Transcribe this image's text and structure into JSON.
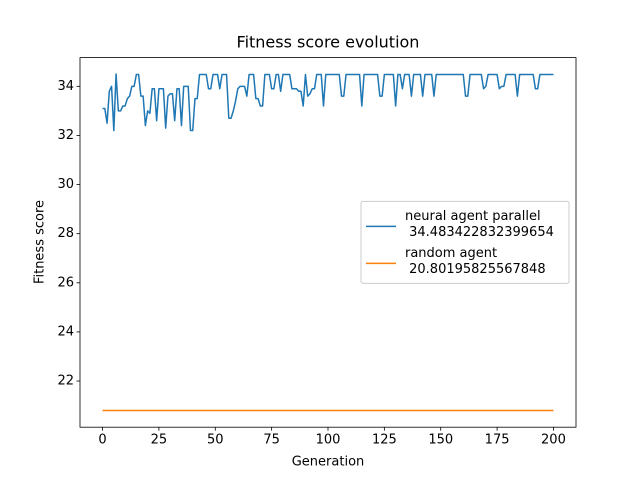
{
  "chart_data": {
    "type": "line",
    "title": "Fitness score evolution",
    "xlabel": "Generation",
    "ylabel": "Fitness score",
    "xlim": [
      -10,
      210
    ],
    "ylim": [
      20.12,
      35.17
    ],
    "xticks": [
      0,
      25,
      50,
      75,
      100,
      125,
      150,
      175,
      200
    ],
    "yticks": [
      22,
      24,
      26,
      28,
      30,
      32,
      34
    ],
    "legend": "center right",
    "x": [
      0,
      1,
      2,
      3,
      4,
      5,
      6,
      7,
      8,
      9,
      10,
      11,
      12,
      13,
      14,
      15,
      16,
      17,
      18,
      19,
      20,
      21,
      22,
      23,
      24,
      25,
      26,
      27,
      28,
      29,
      30,
      31,
      32,
      33,
      34,
      35,
      36,
      37,
      38,
      39,
      40,
      41,
      42,
      43,
      44,
      45,
      46,
      47,
      48,
      49,
      50,
      51,
      52,
      53,
      54,
      55,
      56,
      57,
      58,
      59,
      60,
      61,
      62,
      63,
      64,
      65,
      66,
      67,
      68,
      69,
      70,
      71,
      72,
      73,
      74,
      75,
      76,
      77,
      78,
      79,
      80,
      81,
      82,
      83,
      84,
      85,
      86,
      87,
      88,
      89,
      90,
      91,
      92,
      93,
      94,
      95,
      96,
      97,
      98,
      99,
      100,
      101,
      102,
      103,
      104,
      105,
      106,
      107,
      108,
      109,
      110,
      111,
      112,
      113,
      114,
      115,
      116,
      117,
      118,
      119,
      120,
      121,
      122,
      123,
      124,
      125,
      126,
      127,
      128,
      129,
      130,
      131,
      132,
      133,
      134,
      135,
      136,
      137,
      138,
      139,
      140,
      141,
      142,
      143,
      144,
      145,
      146,
      147,
      148,
      149,
      150,
      151,
      152,
      153,
      154,
      155,
      156,
      157,
      158,
      159,
      160,
      161,
      162,
      163,
      164,
      165,
      166,
      167,
      168,
      169,
      170,
      171,
      172,
      173,
      174,
      175,
      176,
      177,
      178,
      179,
      180,
      181,
      182,
      183,
      184,
      185,
      186,
      187,
      188,
      189,
      190,
      191,
      192,
      193,
      194,
      195,
      196,
      197,
      198,
      199,
      200
    ],
    "series": [
      {
        "name": "neural agent parallel\n 34.483422832399654",
        "color": "#1f77b4",
        "values": [
          33.1,
          33.1,
          32.5,
          33.8,
          34.0,
          32.2,
          34.5,
          33.0,
          33.0,
          33.2,
          33.2,
          33.5,
          33.6,
          34.0,
          34.0,
          34.48,
          34.48,
          33.6,
          33.6,
          32.4,
          33.0,
          32.9,
          33.9,
          33.9,
          32.6,
          33.9,
          33.9,
          33.9,
          32.3,
          33.6,
          33.7,
          33.7,
          32.6,
          33.9,
          33.9,
          32.4,
          34.0,
          34.0,
          34.0,
          32.2,
          32.2,
          33.5,
          33.5,
          34.48,
          34.48,
          34.48,
          34.48,
          33.9,
          33.9,
          34.48,
          34.48,
          34.48,
          33.9,
          34.48,
          34.48,
          34.48,
          32.7,
          32.7,
          33.0,
          33.4,
          33.9,
          34.0,
          34.0,
          34.0,
          33.6,
          34.48,
          34.48,
          34.48,
          33.5,
          33.5,
          33.2,
          33.2,
          34.48,
          34.48,
          34.48,
          33.9,
          33.9,
          34.48,
          34.48,
          33.8,
          34.48,
          34.48,
          34.48,
          34.48,
          33.9,
          33.9,
          33.9,
          33.8,
          33.8,
          33.2,
          34.48,
          33.6,
          33.7,
          33.9,
          33.9,
          34.48,
          34.48,
          34.48,
          33.2,
          34.48,
          34.48,
          34.48,
          34.48,
          34.48,
          34.48,
          34.48,
          33.6,
          33.6,
          34.48,
          34.48,
          34.48,
          34.48,
          34.48,
          34.48,
          34.48,
          33.2,
          34.48,
          34.48,
          34.48,
          34.48,
          34.48,
          34.48,
          34.48,
          33.6,
          33.6,
          34.48,
          34.48,
          34.48,
          34.48,
          34.48,
          33.2,
          34.48,
          34.48,
          33.9,
          34.48,
          34.48,
          34.48,
          33.6,
          34.48,
          34.48,
          34.48,
          34.48,
          33.6,
          34.48,
          34.48,
          34.48,
          34.48,
          33.6,
          34.48,
          34.48,
          34.48,
          34.48,
          34.48,
          34.48,
          34.48,
          34.48,
          34.48,
          34.48,
          34.48,
          34.48,
          34.48,
          33.6,
          33.6,
          34.48,
          34.48,
          34.48,
          34.48,
          34.48,
          34.48,
          33.9,
          34.0,
          34.48,
          34.48,
          34.48,
          34.48,
          34.48,
          33.9,
          34.0,
          34.0,
          34.48,
          34.48,
          34.48,
          34.48,
          34.48,
          33.6,
          34.48,
          34.48,
          34.48,
          34.48,
          34.48,
          34.48,
          34.48,
          33.9,
          33.9,
          34.48,
          34.48,
          34.48,
          34.48,
          34.48,
          34.48,
          34.48
        ]
      },
      {
        "name": "random agent\n 20.80195825567848",
        "color": "#ff7f0e",
        "values": [
          20.80195825567848,
          20.80195825567848,
          20.80195825567848,
          20.80195825567848,
          20.80195825567848,
          20.80195825567848,
          20.80195825567848,
          20.80195825567848,
          20.80195825567848,
          20.80195825567848,
          20.80195825567848,
          20.80195825567848,
          20.80195825567848,
          20.80195825567848,
          20.80195825567848,
          20.80195825567848,
          20.80195825567848,
          20.80195825567848,
          20.80195825567848,
          20.80195825567848,
          20.80195825567848,
          20.80195825567848,
          20.80195825567848,
          20.80195825567848,
          20.80195825567848,
          20.80195825567848,
          20.80195825567848,
          20.80195825567848,
          20.80195825567848,
          20.80195825567848,
          20.80195825567848,
          20.80195825567848,
          20.80195825567848,
          20.80195825567848,
          20.80195825567848,
          20.80195825567848,
          20.80195825567848,
          20.80195825567848,
          20.80195825567848,
          20.80195825567848,
          20.80195825567848,
          20.80195825567848,
          20.80195825567848,
          20.80195825567848,
          20.80195825567848,
          20.80195825567848,
          20.80195825567848,
          20.80195825567848,
          20.80195825567848,
          20.80195825567848,
          20.80195825567848,
          20.80195825567848,
          20.80195825567848,
          20.80195825567848,
          20.80195825567848,
          20.80195825567848,
          20.80195825567848,
          20.80195825567848,
          20.80195825567848,
          20.80195825567848,
          20.80195825567848,
          20.80195825567848,
          20.80195825567848,
          20.80195825567848,
          20.80195825567848,
          20.80195825567848,
          20.80195825567848,
          20.80195825567848,
          20.80195825567848,
          20.80195825567848,
          20.80195825567848,
          20.80195825567848,
          20.80195825567848,
          20.80195825567848,
          20.80195825567848,
          20.80195825567848,
          20.80195825567848,
          20.80195825567848,
          20.80195825567848,
          20.80195825567848,
          20.80195825567848,
          20.80195825567848,
          20.80195825567848,
          20.80195825567848,
          20.80195825567848,
          20.80195825567848,
          20.80195825567848,
          20.80195825567848,
          20.80195825567848,
          20.80195825567848,
          20.80195825567848,
          20.80195825567848,
          20.80195825567848,
          20.80195825567848,
          20.80195825567848,
          20.80195825567848,
          20.80195825567848,
          20.80195825567848,
          20.80195825567848,
          20.80195825567848,
          20.80195825567848,
          20.80195825567848,
          20.80195825567848,
          20.80195825567848,
          20.80195825567848,
          20.80195825567848,
          20.80195825567848,
          20.80195825567848,
          20.80195825567848,
          20.80195825567848,
          20.80195825567848,
          20.80195825567848,
          20.80195825567848,
          20.80195825567848,
          20.80195825567848,
          20.80195825567848,
          20.80195825567848,
          20.80195825567848,
          20.80195825567848,
          20.80195825567848,
          20.80195825567848,
          20.80195825567848,
          20.80195825567848,
          20.80195825567848,
          20.80195825567848,
          20.80195825567848,
          20.80195825567848,
          20.80195825567848,
          20.80195825567848,
          20.80195825567848,
          20.80195825567848,
          20.80195825567848,
          20.80195825567848,
          20.80195825567848,
          20.80195825567848,
          20.80195825567848,
          20.80195825567848,
          20.80195825567848,
          20.80195825567848,
          20.80195825567848,
          20.80195825567848,
          20.80195825567848,
          20.80195825567848,
          20.80195825567848,
          20.80195825567848,
          20.80195825567848,
          20.80195825567848,
          20.80195825567848,
          20.80195825567848,
          20.80195825567848,
          20.80195825567848,
          20.80195825567848,
          20.80195825567848,
          20.80195825567848,
          20.80195825567848,
          20.80195825567848,
          20.80195825567848,
          20.80195825567848,
          20.80195825567848,
          20.80195825567848,
          20.80195825567848,
          20.80195825567848,
          20.80195825567848,
          20.80195825567848,
          20.80195825567848,
          20.80195825567848,
          20.80195825567848,
          20.80195825567848,
          20.80195825567848,
          20.80195825567848,
          20.80195825567848,
          20.80195825567848,
          20.80195825567848,
          20.80195825567848,
          20.80195825567848,
          20.80195825567848,
          20.80195825567848,
          20.80195825567848,
          20.80195825567848,
          20.80195825567848,
          20.80195825567848,
          20.80195825567848,
          20.80195825567848,
          20.80195825567848,
          20.80195825567848,
          20.80195825567848,
          20.80195825567848,
          20.80195825567848,
          20.80195825567848,
          20.80195825567848,
          20.80195825567848,
          20.80195825567848,
          20.80195825567848,
          20.80195825567848,
          20.80195825567848,
          20.80195825567848,
          20.80195825567848,
          20.80195825567848,
          20.80195825567848,
          20.80195825567848,
          20.80195825567848
        ]
      }
    ]
  }
}
